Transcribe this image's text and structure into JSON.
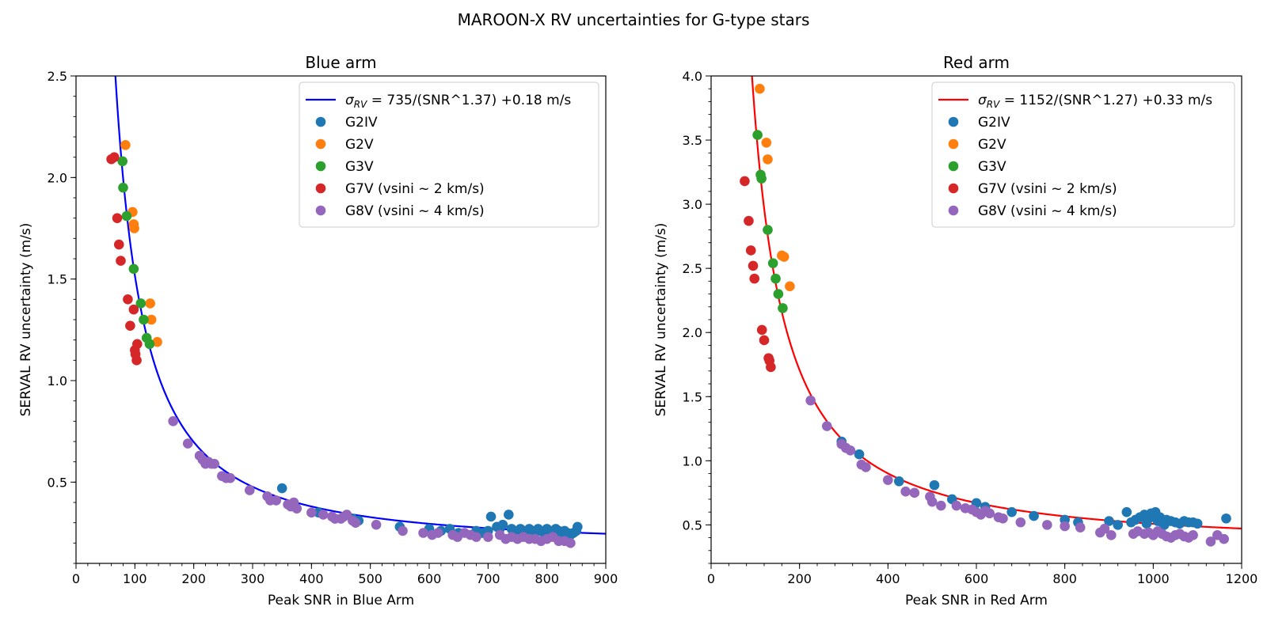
{
  "figure": {
    "suptitle": "MAROON-X RV uncertainties for G-type stars"
  },
  "chart_data": [
    {
      "type": "scatter",
      "panel": "blue-arm",
      "title": "Blue arm",
      "xlabel": "Peak SNR in Blue Arm",
      "ylabel": "SERVAL RV uncertainty (m/s)",
      "xlim": [
        0,
        900
      ],
      "ylim": [
        0.1,
        2.5
      ],
      "xticks": [
        0,
        100,
        200,
        300,
        400,
        500,
        600,
        700,
        800,
        900
      ],
      "xtick_labels": [
        "0",
        "100",
        "200",
        "300",
        "400",
        "500",
        "600",
        "700",
        "800",
        "900"
      ],
      "yticks": [
        0.5,
        1.0,
        1.5,
        2.0,
        2.5
      ],
      "ytick_labels": [
        "0.5",
        "1.0",
        "1.5",
        "2.0",
        "2.5"
      ],
      "legend_position": "top-right",
      "fit": {
        "label_sigma": "σ",
        "label_sub": "RV",
        "label_rest": " = 735/(SNR^1.37) +0.18 m/s",
        "A": 735,
        "p": 1.37,
        "c": 0.18,
        "color": "#0000ff"
      },
      "series": [
        {
          "name": "G2IV",
          "color": "#1f77b4",
          "points": [
            [
              350,
              0.47
            ],
            [
              412,
              0.35
            ],
            [
              470,
              0.32
            ],
            [
              480,
              0.31
            ],
            [
              550,
              0.28
            ],
            [
              600,
              0.27
            ],
            [
              620,
              0.26
            ],
            [
              635,
              0.27
            ],
            [
              650,
              0.25
            ],
            [
              680,
              0.26
            ],
            [
              690,
              0.25
            ],
            [
              700,
              0.26
            ],
            [
              705,
              0.33
            ],
            [
              715,
              0.28
            ],
            [
              720,
              0.27
            ],
            [
              725,
              0.29
            ],
            [
              735,
              0.34
            ],
            [
              740,
              0.27
            ],
            [
              745,
              0.26
            ],
            [
              750,
              0.25
            ],
            [
              755,
              0.27
            ],
            [
              760,
              0.26
            ],
            [
              765,
              0.25
            ],
            [
              770,
              0.27
            ],
            [
              775,
              0.26
            ],
            [
              780,
              0.25
            ],
            [
              785,
              0.27
            ],
            [
              790,
              0.26
            ],
            [
              795,
              0.25
            ],
            [
              800,
              0.27
            ],
            [
              805,
              0.26
            ],
            [
              810,
              0.25
            ],
            [
              815,
              0.27
            ],
            [
              820,
              0.26
            ],
            [
              825,
              0.25
            ],
            [
              830,
              0.26
            ],
            [
              835,
              0.25
            ],
            [
              840,
              0.24
            ],
            [
              845,
              0.25
            ],
            [
              850,
              0.26
            ],
            [
              852,
              0.28
            ]
          ]
        },
        {
          "name": "G2V",
          "color": "#ff7f0e",
          "points": [
            [
              84,
              2.16
            ],
            [
              96,
              1.83
            ],
            [
              98,
              1.77
            ],
            [
              99,
              1.75
            ],
            [
              126,
              1.38
            ],
            [
              128,
              1.3
            ],
            [
              138,
              1.19
            ]
          ]
        },
        {
          "name": "G3V",
          "color": "#2ca02c",
          "points": [
            [
              79,
              2.08
            ],
            [
              80,
              1.95
            ],
            [
              86,
              1.81
            ],
            [
              98,
              1.55
            ],
            [
              110,
              1.38
            ],
            [
              115,
              1.3
            ],
            [
              120,
              1.21
            ],
            [
              125,
              1.18
            ]
          ]
        },
        {
          "name": "G7V (vsini ~ 2 km/s)",
          "color": "#d62728",
          "points": [
            [
              60,
              2.09
            ],
            [
              65,
              2.1
            ],
            [
              70,
              1.8
            ],
            [
              73,
              1.67
            ],
            [
              76,
              1.59
            ],
            [
              88,
              1.4
            ],
            [
              92,
              1.27
            ],
            [
              98,
              1.35
            ],
            [
              100,
              1.15
            ],
            [
              101,
              1.13
            ],
            [
              103,
              1.1
            ],
            [
              104,
              1.18
            ]
          ]
        },
        {
          "name": "G8V (vsini ~ 4 km/s)",
          "color": "#9467bd",
          "points": [
            [
              165,
              0.8
            ],
            [
              190,
              0.69
            ],
            [
              210,
              0.63
            ],
            [
              215,
              0.61
            ],
            [
              220,
              0.59
            ],
            [
              225,
              0.6
            ],
            [
              230,
              0.59
            ],
            [
              235,
              0.59
            ],
            [
              248,
              0.53
            ],
            [
              255,
              0.52
            ],
            [
              262,
              0.52
            ],
            [
              295,
              0.46
            ],
            [
              325,
              0.43
            ],
            [
              330,
              0.41
            ],
            [
              340,
              0.41
            ],
            [
              360,
              0.39
            ],
            [
              365,
              0.38
            ],
            [
              370,
              0.4
            ],
            [
              375,
              0.37
            ],
            [
              400,
              0.35
            ],
            [
              420,
              0.34
            ],
            [
              435,
              0.33
            ],
            [
              440,
              0.32
            ],
            [
              450,
              0.32
            ],
            [
              455,
              0.33
            ],
            [
              460,
              0.34
            ],
            [
              470,
              0.31
            ],
            [
              475,
              0.3
            ],
            [
              510,
              0.29
            ],
            [
              555,
              0.26
            ],
            [
              590,
              0.25
            ],
            [
              605,
              0.24
            ],
            [
              615,
              0.25
            ],
            [
              640,
              0.24
            ],
            [
              648,
              0.23
            ],
            [
              660,
              0.25
            ],
            [
              670,
              0.24
            ],
            [
              680,
              0.23
            ],
            [
              700,
              0.23
            ],
            [
              720,
              0.24
            ],
            [
              730,
              0.22
            ],
            [
              740,
              0.23
            ],
            [
              750,
              0.22
            ],
            [
              760,
              0.23
            ],
            [
              770,
              0.22
            ],
            [
              780,
              0.22
            ],
            [
              790,
              0.21
            ],
            [
              800,
              0.22
            ],
            [
              810,
              0.23
            ],
            [
              820,
              0.21
            ],
            [
              830,
              0.21
            ],
            [
              840,
              0.2
            ]
          ]
        }
      ]
    },
    {
      "type": "scatter",
      "panel": "red-arm",
      "title": "Red arm",
      "xlabel": "Peak SNR in Red Arm",
      "ylabel": "SERVAL RV uncertainty (m/s)",
      "xlim": [
        0,
        1200
      ],
      "ylim": [
        0.2,
        4.0
      ],
      "xticks": [
        0,
        200,
        400,
        600,
        800,
        1000,
        1200
      ],
      "xtick_labels": [
        "0",
        "200",
        "400",
        "600",
        "800",
        "1000",
        "1200"
      ],
      "yticks": [
        0.5,
        1.0,
        1.5,
        2.0,
        2.5,
        3.0,
        3.5,
        4.0
      ],
      "ytick_labels": [
        "0.5",
        "1.0",
        "1.5",
        "2.0",
        "2.5",
        "3.0",
        "3.5",
        "4.0"
      ],
      "legend_position": "top-right",
      "fit": {
        "label_sigma": "σ",
        "label_sub": "RV",
        "label_rest": " = 1152/(SNR^1.27) +0.33 m/s",
        "A": 1152,
        "p": 1.27,
        "c": 0.33,
        "color": "#ff0000"
      },
      "series": [
        {
          "name": "G2IV",
          "color": "#1f77b4",
          "points": [
            [
              295,
              1.15
            ],
            [
              335,
              1.05
            ],
            [
              425,
              0.84
            ],
            [
              505,
              0.81
            ],
            [
              545,
              0.7
            ],
            [
              600,
              0.67
            ],
            [
              620,
              0.64
            ],
            [
              680,
              0.6
            ],
            [
              730,
              0.57
            ],
            [
              800,
              0.54
            ],
            [
              830,
              0.52
            ],
            [
              900,
              0.53
            ],
            [
              920,
              0.5
            ],
            [
              940,
              0.6
            ],
            [
              950,
              0.52
            ],
            [
              960,
              0.54
            ],
            [
              970,
              0.56
            ],
            [
              980,
              0.58
            ],
            [
              985,
              0.51
            ],
            [
              990,
              0.55
            ],
            [
              995,
              0.59
            ],
            [
              1000,
              0.57
            ],
            [
              1005,
              0.6
            ],
            [
              1010,
              0.53
            ],
            [
              1015,
              0.56
            ],
            [
              1020,
              0.52
            ],
            [
              1025,
              0.5
            ],
            [
              1030,
              0.54
            ],
            [
              1040,
              0.53
            ],
            [
              1050,
              0.52
            ],
            [
              1060,
              0.51
            ],
            [
              1070,
              0.53
            ],
            [
              1080,
              0.52
            ],
            [
              1090,
              0.52
            ],
            [
              1100,
              0.51
            ],
            [
              1165,
              0.55
            ]
          ]
        },
        {
          "name": "G2V",
          "color": "#ff7f0e",
          "points": [
            [
              110,
              3.9
            ],
            [
              125,
              3.48
            ],
            [
              128,
              3.35
            ],
            [
              160,
              2.6
            ],
            [
              165,
              2.59
            ],
            [
              178,
              2.36
            ]
          ]
        },
        {
          "name": "G3V",
          "color": "#2ca02c",
          "points": [
            [
              105,
              3.54
            ],
            [
              112,
              3.23
            ],
            [
              114,
              3.2
            ],
            [
              128,
              2.8
            ],
            [
              140,
              2.54
            ],
            [
              146,
              2.42
            ],
            [
              152,
              2.3
            ],
            [
              162,
              2.19
            ]
          ]
        },
        {
          "name": "G7V (vsini ~ 2 km/s)",
          "color": "#d62728",
          "points": [
            [
              76,
              3.18
            ],
            [
              85,
              2.87
            ],
            [
              90,
              2.64
            ],
            [
              95,
              2.52
            ],
            [
              98,
              2.42
            ],
            [
              115,
              2.02
            ],
            [
              120,
              1.94
            ],
            [
              130,
              1.8
            ],
            [
              132,
              1.78
            ],
            [
              135,
              1.73
            ]
          ]
        },
        {
          "name": "G8V (vsini ~ 4 km/s)",
          "color": "#9467bd",
          "points": [
            [
              225,
              1.47
            ],
            [
              262,
              1.27
            ],
            [
              295,
              1.13
            ],
            [
              305,
              1.1
            ],
            [
              315,
              1.08
            ],
            [
              340,
              0.97
            ],
            [
              350,
              0.95
            ],
            [
              400,
              0.85
            ],
            [
              440,
              0.76
            ],
            [
              460,
              0.75
            ],
            [
              495,
              0.72
            ],
            [
              500,
              0.68
            ],
            [
              520,
              0.65
            ],
            [
              555,
              0.65
            ],
            [
              575,
              0.63
            ],
            [
              590,
              0.62
            ],
            [
              600,
              0.6
            ],
            [
              610,
              0.58
            ],
            [
              620,
              0.61
            ],
            [
              630,
              0.59
            ],
            [
              650,
              0.56
            ],
            [
              660,
              0.55
            ],
            [
              700,
              0.52
            ],
            [
              760,
              0.5
            ],
            [
              800,
              0.49
            ],
            [
              835,
              0.48
            ],
            [
              880,
              0.44
            ],
            [
              890,
              0.47
            ],
            [
              905,
              0.42
            ],
            [
              955,
              0.43
            ],
            [
              965,
              0.45
            ],
            [
              980,
              0.43
            ],
            [
              990,
              0.44
            ],
            [
              1000,
              0.42
            ],
            [
              1010,
              0.45
            ],
            [
              1020,
              0.43
            ],
            [
              1030,
              0.41
            ],
            [
              1040,
              0.4
            ],
            [
              1050,
              0.42
            ],
            [
              1060,
              0.43
            ],
            [
              1070,
              0.41
            ],
            [
              1080,
              0.4
            ],
            [
              1090,
              0.42
            ],
            [
              1130,
              0.37
            ],
            [
              1145,
              0.42
            ],
            [
              1160,
              0.39
            ]
          ]
        }
      ]
    }
  ]
}
